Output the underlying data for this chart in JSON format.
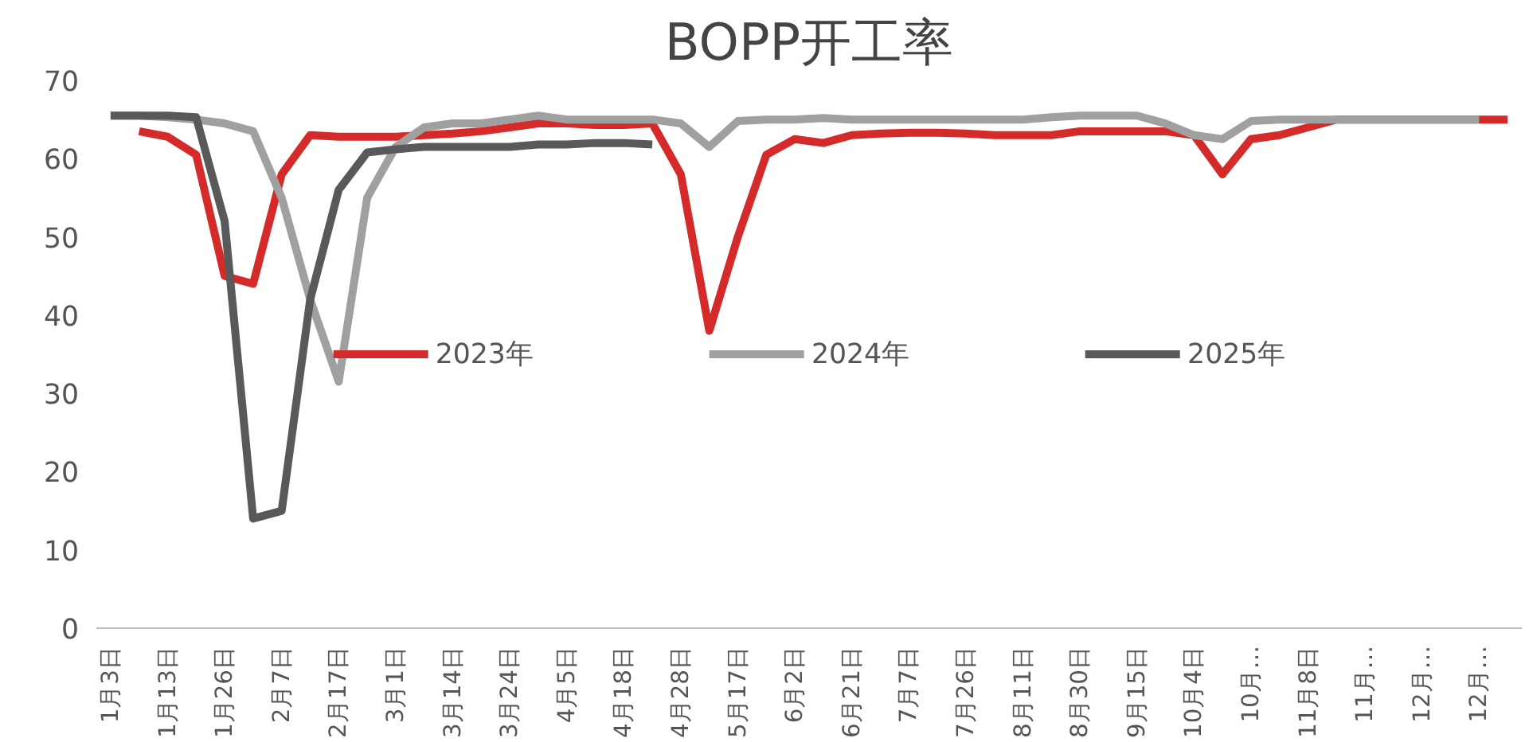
{
  "chart_data": {
    "type": "line",
    "title": "BOPP开工率",
    "categories": [
      "1月3日",
      null,
      "1月13日",
      null,
      "1月26日",
      null,
      "2月7日",
      null,
      "2月17日",
      null,
      "3月1日",
      null,
      "3月14日",
      null,
      "3月24日",
      null,
      "4月5日",
      null,
      "4月18日",
      null,
      "4月28日",
      null,
      "5月17日",
      null,
      "6月2日",
      null,
      "6月21日",
      null,
      "7月7日",
      null,
      "7月26日",
      null,
      "8月11日",
      null,
      "8月30日",
      null,
      "9月15日",
      null,
      "10月4日",
      null,
      "10月…",
      null,
      "11月8日",
      null,
      "11月…",
      null,
      "12月…",
      null,
      "12月…",
      null
    ],
    "series": [
      {
        "name": "2023年",
        "color": "#d42a2a",
        "values": [
          null,
          63.5,
          62.8,
          60.5,
          45,
          44,
          58,
          63,
          62.8,
          62.8,
          62.8,
          63,
          63.2,
          63.5,
          64,
          64.5,
          64.5,
          64.3,
          64.3,
          64.5,
          58,
          38,
          50,
          60.5,
          62.5,
          62,
          63,
          63.2,
          63.3,
          63.3,
          63.2,
          63,
          63,
          63,
          63.5,
          63.5,
          63.5,
          63.5,
          63,
          58,
          62.5,
          63,
          64,
          65,
          65,
          65,
          65,
          65,
          65,
          65
        ]
      },
      {
        "name": "2024年",
        "color": "#a0a0a0",
        "values": [
          65.5,
          65.5,
          65.3,
          65,
          64.5,
          63.5,
          55,
          42,
          31.5,
          55,
          61.5,
          64,
          64.5,
          64.5,
          65,
          65.5,
          65,
          65,
          65,
          65,
          64.5,
          61.5,
          64.8,
          65,
          65,
          65.2,
          65,
          65,
          65,
          65,
          65,
          65,
          65,
          65.3,
          65.5,
          65.5,
          65.5,
          64.5,
          63,
          62.5,
          64.8,
          65,
          65,
          65,
          65,
          65,
          65,
          65,
          65,
          null
        ]
      },
      {
        "name": "2025年",
        "color": "#595959",
        "values": [
          65.5,
          65.5,
          65.5,
          65.3,
          52,
          14,
          15,
          42,
          56,
          60.8,
          61.2,
          61.5,
          61.5,
          61.5,
          61.5,
          61.8,
          61.8,
          62,
          62,
          61.8,
          null,
          null,
          null,
          null,
          null,
          null,
          null,
          null,
          null,
          null,
          null,
          null,
          null,
          null,
          null,
          null,
          null,
          null,
          null,
          null,
          null,
          null,
          null,
          null,
          null,
          null,
          null,
          null,
          null,
          null
        ]
      }
    ],
    "ylim": [
      0,
      70
    ],
    "yticks": [
      0,
      10,
      20,
      30,
      40,
      50,
      60,
      70
    ],
    "grid": false,
    "legend": "center"
  }
}
